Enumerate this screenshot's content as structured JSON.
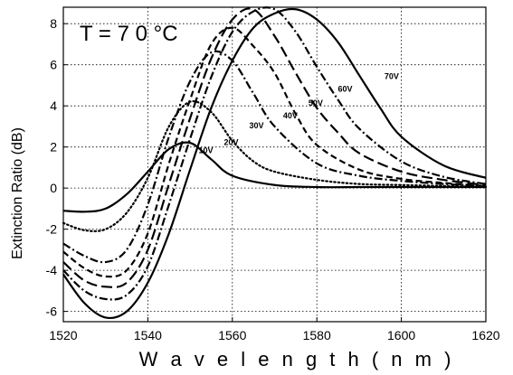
{
  "chart_data": {
    "type": "line",
    "title": "",
    "annotation": "T = 7 0 °C",
    "xlabel": "W a v e l e n g t h  ( n m )",
    "ylabel": "Extinction Ratio (dB)",
    "xlim": [
      1520,
      1620
    ],
    "ylim": [
      -6.5,
      8.8
    ],
    "xticks": [
      1520,
      1540,
      1560,
      1580,
      1600,
      1620
    ],
    "yticks": [
      -6,
      -4,
      -2,
      0,
      2,
      4,
      6,
      8
    ],
    "grid": true,
    "series": [
      {
        "name": "10V",
        "dash": "solid",
        "x": [
          1520,
          1525,
          1530,
          1535,
          1540,
          1545,
          1550,
          1555,
          1560,
          1570,
          1580,
          1590,
          1600,
          1610,
          1620
        ],
        "y": [
          -1.1,
          -1.15,
          -1.0,
          -0.3,
          0.8,
          1.9,
          2.2,
          1.4,
          0.6,
          0.15,
          0.05,
          0.05,
          0.05,
          0.05,
          0.05
        ],
        "label": "10V",
        "label_at": [
          1552,
          1.7
        ]
      },
      {
        "name": "20V",
        "dash": "dot",
        "x": [
          1520,
          1525,
          1530,
          1535,
          1540,
          1545,
          1550,
          1555,
          1560,
          1565,
          1570,
          1580,
          1590,
          1600,
          1610,
          1620
        ],
        "y": [
          -1.7,
          -2.05,
          -2.0,
          -1.2,
          0.5,
          3.0,
          4.2,
          3.7,
          2.3,
          1.3,
          0.8,
          0.4,
          0.2,
          0.15,
          0.1,
          0.05
        ],
        "label": "20V",
        "label_at": [
          1558,
          2.1
        ]
      },
      {
        "name": "30V",
        "dash": "dashdot",
        "x": [
          1520,
          1525,
          1530,
          1535,
          1540,
          1545,
          1550,
          1555,
          1560,
          1565,
          1570,
          1580,
          1590,
          1600,
          1610,
          1620
        ],
        "y": [
          -2.7,
          -3.3,
          -3.6,
          -3.0,
          -0.8,
          2.5,
          5.2,
          6.6,
          6.2,
          4.6,
          3.0,
          1.2,
          0.6,
          0.35,
          0.2,
          0.1
        ],
        "label": "30V",
        "label_at": [
          1564,
          2.9
        ]
      },
      {
        "name": "40V",
        "dash": "dash",
        "x": [
          1520,
          1525,
          1530,
          1535,
          1540,
          1545,
          1550,
          1555,
          1560,
          1565,
          1570,
          1575,
          1580,
          1590,
          1600,
          1610,
          1620
        ],
        "y": [
          -3.1,
          -3.9,
          -4.3,
          -4.0,
          -2.2,
          1.2,
          4.3,
          7.0,
          7.8,
          6.9,
          5.6,
          3.6,
          2.1,
          0.9,
          0.45,
          0.25,
          0.1
        ],
        "label": "40V",
        "label_at": [
          1572,
          3.4
        ]
      },
      {
        "name": "50V",
        "dash": "longdash",
        "x": [
          1520,
          1525,
          1530,
          1535,
          1540,
          1545,
          1550,
          1555,
          1560,
          1565,
          1570,
          1575,
          1580,
          1585,
          1590,
          1600,
          1610,
          1620
        ],
        "y": [
          -3.6,
          -4.5,
          -4.8,
          -4.6,
          -3.0,
          0.2,
          3.4,
          6.3,
          8.2,
          8.7,
          7.4,
          5.6,
          3.9,
          2.7,
          1.7,
          0.8,
          0.4,
          0.15
        ],
        "label": "50V",
        "label_at": [
          1578,
          4.0
        ]
      },
      {
        "name": "60V",
        "dash": "dashdot",
        "x": [
          1520,
          1525,
          1530,
          1535,
          1540,
          1545,
          1550,
          1555,
          1560,
          1565,
          1570,
          1575,
          1580,
          1585,
          1590,
          1600,
          1610,
          1620
        ],
        "y": [
          -4.0,
          -5.0,
          -5.4,
          -5.2,
          -3.8,
          -0.8,
          2.4,
          5.4,
          7.6,
          8.6,
          8.7,
          7.6,
          5.9,
          4.3,
          2.9,
          1.3,
          0.55,
          0.2
        ],
        "label": "60V",
        "label_at": [
          1585,
          4.7
        ]
      },
      {
        "name": "70V",
        "dash": "solid",
        "x": [
          1520,
          1525,
          1530,
          1535,
          1540,
          1545,
          1550,
          1555,
          1560,
          1565,
          1570,
          1575,
          1580,
          1585,
          1590,
          1595,
          1600,
          1610,
          1620
        ],
        "y": [
          -4.2,
          -5.6,
          -6.3,
          -6.0,
          -4.6,
          -2.2,
          0.9,
          3.9,
          6.2,
          7.8,
          8.5,
          8.7,
          8.2,
          7.1,
          5.5,
          3.9,
          2.5,
          1.1,
          0.5
        ],
        "label": "70V",
        "label_at": [
          1596,
          5.3
        ]
      }
    ]
  }
}
